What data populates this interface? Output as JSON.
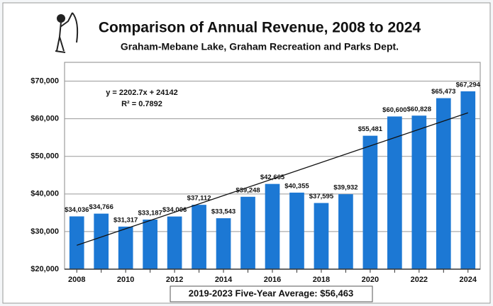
{
  "chart_data": {
    "type": "bar",
    "title": "Comparison of Annual Revenue, 2008 to 2024",
    "subtitle": "Graham-Mebane Lake, Graham Recreation and Parks Dept.",
    "categories": [
      "2008",
      null,
      "2010",
      null,
      "2012",
      null,
      "2014",
      null,
      "2016",
      null,
      "2018",
      null,
      "2020",
      null,
      "2022",
      null,
      "2024"
    ],
    "values": [
      34036,
      34766,
      31317,
      33187,
      34006,
      37112,
      33543,
      39248,
      42665,
      40355,
      37595,
      39932,
      55481,
      60600,
      60828,
      65473,
      67294
    ],
    "value_labels": [
      "$34,036",
      "$34,766",
      "$31,317",
      "$33,187",
      "$34,006",
      "$37,112",
      "$33,543",
      "$39,248",
      "$42,665",
      "$40,355",
      "$37,595",
      "$39,932",
      "$55,481",
      "$60,600",
      "$60,828",
      "$65,473",
      "$67,294"
    ],
    "color": "#1c78d4",
    "ylim": [
      20000,
      75000
    ],
    "yticks": [
      {
        "value": 20000,
        "label": "$20,000"
      },
      {
        "value": 30000,
        "label": "$30,000"
      },
      {
        "value": 40000,
        "label": "$40,000"
      },
      {
        "value": 50000,
        "label": "$50,000"
      },
      {
        "value": 60000,
        "label": "$60,000"
      },
      {
        "value": 70000,
        "label": "$70,000"
      }
    ],
    "grid": true,
    "annotations": [
      "y = 2202.7x + 24142",
      "R² = 0.7892"
    ],
    "footnote": "2019-2023 Five-Year Average: $56,463"
  }
}
